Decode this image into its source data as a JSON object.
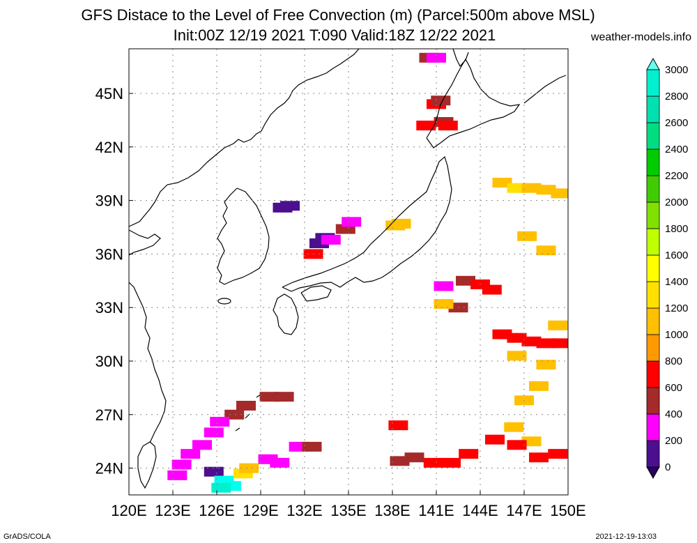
{
  "header": {
    "title_line1": "GFS Distace to the Level of Free Convection (m) (Parcel:500m above MSL)",
    "title_line2": "Init:00Z 12/19 2021 T:090 Valid:18Z 12/22 2021",
    "site": "weather-models.info"
  },
  "footer": {
    "left": "GrADS/COLA",
    "right": "2021-12-19-13:03"
  },
  "map": {
    "lon_labels": [
      "120E",
      "123E",
      "126E",
      "129E",
      "132E",
      "135E",
      "138E",
      "141E",
      "144E",
      "147E",
      "150E"
    ],
    "lat_labels": [
      "45N",
      "42N",
      "39N",
      "36N",
      "33N",
      "30N",
      "27N",
      "24N"
    ],
    "lon_range": [
      120,
      150
    ],
    "lat_range": [
      22.5,
      47.5
    ]
  },
  "colorbar": {
    "labels": [
      "0",
      "200",
      "400",
      "600",
      "800",
      "1000",
      "1200",
      "1400",
      "1600",
      "1800",
      "2000",
      "2200",
      "2400",
      "2600",
      "2800",
      "3000"
    ],
    "colors": [
      "#4b0f8f",
      "#ff00ff",
      "#a52a2a",
      "#ff0000",
      "#ff9900",
      "#ffc000",
      "#ffe000",
      "#ffff00",
      "#c0ff00",
      "#80e000",
      "#40cc00",
      "#00cc00",
      "#00dd80",
      "#00e0b0",
      "#00f0d0",
      "#00ffee"
    ],
    "under_color": "#2a0060",
    "over_color": "#66ffee"
  },
  "regions": [
    {
      "lon": 138.2,
      "lat": 37.6,
      "level": 1000
    },
    {
      "lon": 138.6,
      "lat": 37.7,
      "level": 1000
    },
    {
      "lon": 133.0,
      "lat": 36.6,
      "level": 0
    },
    {
      "lon": 133.4,
      "lat": 36.9,
      "level": 0
    },
    {
      "lon": 133.8,
      "lat": 36.8,
      "level": 200
    },
    {
      "lon": 132.6,
      "lat": 36.0,
      "level": 600
    },
    {
      "lon": 134.8,
      "lat": 37.4,
      "level": 400
    },
    {
      "lon": 135.2,
      "lat": 37.8,
      "level": 200
    },
    {
      "lon": 130.5,
      "lat": 38.6,
      "level": 0
    },
    {
      "lon": 131.0,
      "lat": 38.7,
      "level": 0
    },
    {
      "lon": 141.0,
      "lat": 44.4,
      "level": 600
    },
    {
      "lon": 141.3,
      "lat": 44.6,
      "level": 400
    },
    {
      "lon": 141.5,
      "lat": 43.4,
      "level": 400
    },
    {
      "lon": 141.8,
      "lat": 43.2,
      "level": 600
    },
    {
      "lon": 140.3,
      "lat": 43.2,
      "level": 600
    },
    {
      "lon": 140.5,
      "lat": 47.0,
      "level": 400
    },
    {
      "lon": 141.0,
      "lat": 47.0,
      "level": 200
    },
    {
      "lon": 145.5,
      "lat": 40.0,
      "level": 1000
    },
    {
      "lon": 146.5,
      "lat": 39.7,
      "level": 1200
    },
    {
      "lon": 147.5,
      "lat": 39.7,
      "level": 1000
    },
    {
      "lon": 148.5,
      "lat": 39.6,
      "level": 1000
    },
    {
      "lon": 149.5,
      "lat": 39.4,
      "level": 1000
    },
    {
      "lon": 147.2,
      "lat": 37.0,
      "level": 1000
    },
    {
      "lon": 148.5,
      "lat": 36.2,
      "level": 1000
    },
    {
      "lon": 141.5,
      "lat": 34.2,
      "level": 200
    },
    {
      "lon": 143.0,
      "lat": 34.5,
      "level": 400
    },
    {
      "lon": 144.0,
      "lat": 34.3,
      "level": 600
    },
    {
      "lon": 144.8,
      "lat": 34.0,
      "level": 600
    },
    {
      "lon": 142.5,
      "lat": 33.0,
      "level": 400
    },
    {
      "lon": 141.5,
      "lat": 33.2,
      "level": 1000
    },
    {
      "lon": 145.5,
      "lat": 31.5,
      "level": 600
    },
    {
      "lon": 146.5,
      "lat": 31.3,
      "level": 600
    },
    {
      "lon": 147.5,
      "lat": 31.1,
      "level": 600
    },
    {
      "lon": 148.5,
      "lat": 31.0,
      "level": 600
    },
    {
      "lon": 149.5,
      "lat": 31.0,
      "level": 600
    },
    {
      "lon": 149.3,
      "lat": 32.0,
      "level": 1000
    },
    {
      "lon": 146.5,
      "lat": 30.3,
      "level": 1000
    },
    {
      "lon": 148.5,
      "lat": 29.8,
      "level": 1000
    },
    {
      "lon": 148.0,
      "lat": 28.6,
      "level": 1000
    },
    {
      "lon": 147.0,
      "lat": 27.8,
      "level": 1000
    },
    {
      "lon": 146.3,
      "lat": 26.3,
      "level": 1000
    },
    {
      "lon": 147.5,
      "lat": 25.5,
      "level": 1000
    },
    {
      "lon": 145.0,
      "lat": 25.6,
      "level": 600
    },
    {
      "lon": 146.5,
      "lat": 25.3,
      "level": 600
    },
    {
      "lon": 148.0,
      "lat": 24.6,
      "level": 600
    },
    {
      "lon": 149.3,
      "lat": 24.8,
      "level": 600
    },
    {
      "lon": 143.2,
      "lat": 24.8,
      "level": 600
    },
    {
      "lon": 142.0,
      "lat": 24.3,
      "level": 600
    },
    {
      "lon": 140.8,
      "lat": 24.3,
      "level": 600
    },
    {
      "lon": 139.5,
      "lat": 24.6,
      "level": 400
    },
    {
      "lon": 138.5,
      "lat": 24.4,
      "level": 400
    },
    {
      "lon": 138.4,
      "lat": 26.4,
      "level": 600
    },
    {
      "lon": 128.0,
      "lat": 27.5,
      "level": 400
    },
    {
      "lon": 127.2,
      "lat": 27.0,
      "level": 400
    },
    {
      "lon": 126.2,
      "lat": 26.6,
      "level": 200
    },
    {
      "lon": 125.8,
      "lat": 26.0,
      "level": 200
    },
    {
      "lon": 125.0,
      "lat": 25.3,
      "level": 200
    },
    {
      "lon": 124.2,
      "lat": 24.8,
      "level": 200
    },
    {
      "lon": 123.6,
      "lat": 24.2,
      "level": 200
    },
    {
      "lon": 123.3,
      "lat": 23.6,
      "level": 200
    },
    {
      "lon": 125.8,
      "lat": 23.8,
      "level": 0
    },
    {
      "lon": 129.6,
      "lat": 28.0,
      "level": 400
    },
    {
      "lon": 130.6,
      "lat": 28.0,
      "level": 400
    },
    {
      "lon": 131.6,
      "lat": 25.2,
      "level": 200
    },
    {
      "lon": 132.5,
      "lat": 25.2,
      "level": 400
    },
    {
      "lon": 129.5,
      "lat": 24.5,
      "level": 200
    },
    {
      "lon": 130.3,
      "lat": 24.3,
      "level": 200
    },
    {
      "lon": 127.0,
      "lat": 23.0,
      "level": 3000
    },
    {
      "lon": 126.5,
      "lat": 23.3,
      "level": 3000
    },
    {
      "lon": 127.8,
      "lat": 23.7,
      "level": 1200
    },
    {
      "lon": 128.2,
      "lat": 24.0,
      "level": 1000
    },
    {
      "lon": 126.3,
      "lat": 22.9,
      "level": 2800
    }
  ]
}
